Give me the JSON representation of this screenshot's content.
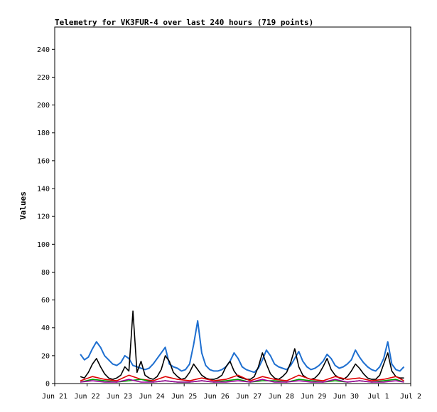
{
  "chart_data": {
    "type": "line",
    "title": "Telemetry for VK3FUR-4 over last 240 hours (719 points)",
    "xlabel": "",
    "ylabel": "Values",
    "ylim": [
      0,
      256
    ],
    "xlim": [
      "2024-06-21T00:00",
      "2024-07-02T00:00"
    ],
    "yticks": [
      0,
      20,
      40,
      60,
      80,
      100,
      120,
      140,
      160,
      180,
      200,
      220,
      240
    ],
    "xticks": [
      {
        "label": "Jun 21",
        "date": "2024-06-21T00:00"
      },
      {
        "label": "Jun 22",
        "date": "2024-06-22T00:00"
      },
      {
        "label": "Jun 23",
        "date": "2024-06-23T00:00"
      },
      {
        "label": "Jun 24",
        "date": "2024-06-24T00:00"
      },
      {
        "label": "Jun 25",
        "date": "2024-06-25T00:00"
      },
      {
        "label": "Jun 26",
        "date": "2024-06-26T00:00"
      },
      {
        "label": "Jun 27",
        "date": "2024-06-27T00:00"
      },
      {
        "label": "Jun 28",
        "date": "2024-06-28T00:00"
      },
      {
        "label": "Jun 29",
        "date": "2024-06-29T00:00"
      },
      {
        "label": "Jun 30",
        "date": "2024-06-30T00:00"
      },
      {
        "label": "Jul 1",
        "date": "2024-07-01T00:00"
      },
      {
        "label": "Jul 2",
        "date": "2024-07-02T00:00"
      }
    ],
    "grid": false,
    "legend": "none",
    "series": [
      {
        "color": "#1e6fd0",
        "x": [
          "2024-06-21T19:00",
          "2024-06-21T22:00",
          "2024-06-22T01:00",
          "2024-06-22T04:00",
          "2024-06-22T07:00",
          "2024-06-22T10:00",
          "2024-06-22T13:00",
          "2024-06-22T16:00",
          "2024-06-22T19:00",
          "2024-06-22T22:00",
          "2024-06-23T01:00",
          "2024-06-23T04:00",
          "2024-06-23T07:00",
          "2024-06-23T10:00",
          "2024-06-23T13:00",
          "2024-06-23T16:00",
          "2024-06-23T19:00",
          "2024-06-23T22:00",
          "2024-06-24T01:00",
          "2024-06-24T04:00",
          "2024-06-24T07:00",
          "2024-06-24T10:00",
          "2024-06-24T13:00",
          "2024-06-24T16:00",
          "2024-06-24T19:00",
          "2024-06-24T22:00",
          "2024-06-25T01:00",
          "2024-06-25T04:00",
          "2024-06-25T07:00",
          "2024-06-25T10:00",
          "2024-06-25T13:00",
          "2024-06-25T16:00",
          "2024-06-25T19:00",
          "2024-06-25T22:00",
          "2024-06-26T01:00",
          "2024-06-26T04:00",
          "2024-06-26T07:00",
          "2024-06-26T10:00",
          "2024-06-26T13:00",
          "2024-06-26T16:00",
          "2024-06-26T19:00",
          "2024-06-26T22:00",
          "2024-06-27T01:00",
          "2024-06-27T04:00",
          "2024-06-27T07:00",
          "2024-06-27T10:00",
          "2024-06-27T13:00",
          "2024-06-27T16:00",
          "2024-06-27T19:00",
          "2024-06-27T22:00",
          "2024-06-28T01:00",
          "2024-06-28T04:00",
          "2024-06-28T07:00",
          "2024-06-28T10:00",
          "2024-06-28T13:00",
          "2024-06-28T16:00",
          "2024-06-28T19:00",
          "2024-06-28T22:00",
          "2024-06-29T01:00",
          "2024-06-29T04:00",
          "2024-06-29T07:00",
          "2024-06-29T10:00",
          "2024-06-29T13:00",
          "2024-06-29T16:00",
          "2024-06-29T19:00",
          "2024-06-29T22:00",
          "2024-06-30T01:00",
          "2024-06-30T04:00",
          "2024-06-30T07:00",
          "2024-06-30T10:00",
          "2024-06-30T13:00",
          "2024-06-30T16:00",
          "2024-06-30T19:00",
          "2024-06-30T22:00",
          "2024-07-01T01:00",
          "2024-07-01T04:00",
          "2024-07-01T07:00",
          "2024-07-01T10:00",
          "2024-07-01T13:00",
          "2024-07-01T16:00",
          "2024-07-01T19:00"
        ],
        "y": [
          21,
          17,
          19,
          25,
          30,
          26,
          20,
          17,
          14,
          13,
          15,
          20,
          18,
          13,
          12,
          11,
          10,
          11,
          14,
          18,
          22,
          26,
          14,
          12,
          11,
          9,
          10,
          14,
          28,
          45,
          22,
          13,
          10,
          9,
          9,
          10,
          12,
          16,
          22,
          18,
          12,
          10,
          9,
          8,
          11,
          17,
          24,
          20,
          14,
          12,
          11,
          10,
          13,
          18,
          23,
          16,
          12,
          10,
          11,
          13,
          16,
          21,
          18,
          13,
          11,
          12,
          14,
          17,
          24,
          19,
          15,
          12,
          10,
          9,
          12,
          18,
          30,
          14,
          10,
          9,
          12
        ]
      },
      {
        "color": "#000000",
        "x": [
          "2024-06-21T19:00",
          "2024-06-21T22:00",
          "2024-06-22T01:00",
          "2024-06-22T04:00",
          "2024-06-22T07:00",
          "2024-06-22T10:00",
          "2024-06-22T13:00",
          "2024-06-22T16:00",
          "2024-06-22T19:00",
          "2024-06-22T22:00",
          "2024-06-23T01:00",
          "2024-06-23T04:00",
          "2024-06-23T07:00",
          "2024-06-23T10:00",
          "2024-06-23T13:00",
          "2024-06-23T16:00",
          "2024-06-23T19:00",
          "2024-06-23T22:00",
          "2024-06-24T01:00",
          "2024-06-24T04:00",
          "2024-06-24T07:00",
          "2024-06-24T10:00",
          "2024-06-24T13:00",
          "2024-06-24T16:00",
          "2024-06-24T19:00",
          "2024-06-24T22:00",
          "2024-06-25T01:00",
          "2024-06-25T04:00",
          "2024-06-25T07:00",
          "2024-06-25T10:00",
          "2024-06-25T13:00",
          "2024-06-25T16:00",
          "2024-06-25T19:00",
          "2024-06-25T22:00",
          "2024-06-26T01:00",
          "2024-06-26T04:00",
          "2024-06-26T07:00",
          "2024-06-26T10:00",
          "2024-06-26T13:00",
          "2024-06-26T16:00",
          "2024-06-26T19:00",
          "2024-06-26T22:00",
          "2024-06-27T01:00",
          "2024-06-27T04:00",
          "2024-06-27T07:00",
          "2024-06-27T10:00",
          "2024-06-27T13:00",
          "2024-06-27T16:00",
          "2024-06-27T19:00",
          "2024-06-27T22:00",
          "2024-06-28T01:00",
          "2024-06-28T04:00",
          "2024-06-28T07:00",
          "2024-06-28T10:00",
          "2024-06-28T13:00",
          "2024-06-28T16:00",
          "2024-06-28T19:00",
          "2024-06-28T22:00",
          "2024-06-29T01:00",
          "2024-06-29T04:00",
          "2024-06-29T07:00",
          "2024-06-29T10:00",
          "2024-06-29T13:00",
          "2024-06-29T16:00",
          "2024-06-29T19:00",
          "2024-06-29T22:00",
          "2024-06-30T01:00",
          "2024-06-30T04:00",
          "2024-06-30T07:00",
          "2024-06-30T10:00",
          "2024-06-30T13:00",
          "2024-06-30T16:00",
          "2024-06-30T19:00",
          "2024-06-30T22:00",
          "2024-07-01T01:00",
          "2024-07-01T04:00",
          "2024-07-01T07:00",
          "2024-07-01T10:00",
          "2024-07-01T13:00",
          "2024-07-01T16:00",
          "2024-07-01T19:00"
        ],
        "y": [
          5,
          4,
          8,
          14,
          18,
          12,
          7,
          4,
          3,
          4,
          6,
          12,
          9,
          52,
          8,
          16,
          6,
          4,
          3,
          5,
          10,
          20,
          16,
          8,
          5,
          3,
          4,
          8,
          14,
          10,
          6,
          4,
          3,
          3,
          4,
          6,
          12,
          16,
          9,
          5,
          4,
          3,
          3,
          5,
          12,
          22,
          14,
          7,
          4,
          3,
          5,
          8,
          15,
          25,
          12,
          6,
          4,
          3,
          4,
          7,
          12,
          18,
          10,
          6,
          4,
          3,
          5,
          9,
          14,
          11,
          7,
          4,
          3,
          3,
          6,
          14,
          22,
          9,
          5,
          4,
          4
        ]
      },
      {
        "color": "#e00000",
        "x": [
          "2024-06-21T19:00",
          "2024-06-22T04:00",
          "2024-06-22T13:00",
          "2024-06-22T22:00",
          "2024-06-23T07:00",
          "2024-06-23T16:00",
          "2024-06-24T01:00",
          "2024-06-24T10:00",
          "2024-06-24T19:00",
          "2024-06-25T04:00",
          "2024-06-25T13:00",
          "2024-06-25T22:00",
          "2024-06-26T07:00",
          "2024-06-26T16:00",
          "2024-06-27T01:00",
          "2024-06-27T10:00",
          "2024-06-27T19:00",
          "2024-06-28T04:00",
          "2024-06-28T13:00",
          "2024-06-28T22:00",
          "2024-06-29T07:00",
          "2024-06-29T16:00",
          "2024-06-30T01:00",
          "2024-06-30T10:00",
          "2024-06-30T19:00",
          "2024-07-01T04:00",
          "2024-07-01T13:00",
          "2024-07-01T19:00"
        ],
        "y": [
          2,
          5,
          3,
          2,
          6,
          3,
          2,
          5,
          3,
          2,
          4,
          2,
          3,
          6,
          2,
          5,
          3,
          2,
          6,
          3,
          2,
          5,
          3,
          4,
          2,
          3,
          5,
          2
        ]
      },
      {
        "color": "#00a000",
        "x": [
          "2024-06-21T19:00",
          "2024-06-22T04:00",
          "2024-06-22T13:00",
          "2024-06-22T22:00",
          "2024-06-23T07:00",
          "2024-06-23T16:00",
          "2024-06-24T01:00",
          "2024-06-24T10:00",
          "2024-06-24T19:00",
          "2024-06-25T04:00",
          "2024-06-25T13:00",
          "2024-06-25T22:00",
          "2024-06-26T07:00",
          "2024-06-26T16:00",
          "2024-06-27T01:00",
          "2024-06-27T10:00",
          "2024-06-27T19:00",
          "2024-06-28T04:00",
          "2024-06-28T13:00",
          "2024-06-28T22:00",
          "2024-06-29T07:00",
          "2024-06-29T16:00",
          "2024-06-30T01:00",
          "2024-06-30T10:00",
          "2024-06-30T19:00",
          "2024-07-01T04:00",
          "2024-07-01T13:00",
          "2024-07-01T19:00"
        ],
        "y": [
          1,
          3,
          2,
          1,
          2,
          3,
          1,
          2,
          1,
          1,
          2,
          1,
          2,
          3,
          1,
          2,
          2,
          1,
          3,
          2,
          1,
          2,
          1,
          2,
          1,
          2,
          3,
          1
        ]
      },
      {
        "color": "#a000a0",
        "x": [
          "2024-06-21T19:00",
          "2024-06-22T04:00",
          "2024-06-22T13:00",
          "2024-06-22T22:00",
          "2024-06-23T07:00",
          "2024-06-23T16:00",
          "2024-06-24T01:00",
          "2024-06-24T10:00",
          "2024-06-24T19:00",
          "2024-06-25T04:00",
          "2024-06-25T13:00",
          "2024-06-25T22:00",
          "2024-06-26T07:00",
          "2024-06-26T16:00",
          "2024-06-27T01:00",
          "2024-06-27T10:00",
          "2024-06-27T19:00",
          "2024-06-28T04:00",
          "2024-06-28T13:00",
          "2024-06-28T22:00",
          "2024-06-29T07:00",
          "2024-06-29T16:00",
          "2024-06-30T01:00",
          "2024-06-30T10:00",
          "2024-06-30T19:00",
          "2024-07-01T04:00",
          "2024-07-01T13:00",
          "2024-07-01T19:00"
        ],
        "y": [
          1,
          2,
          1,
          1,
          3,
          1,
          1,
          2,
          1,
          1,
          2,
          1,
          1,
          2,
          1,
          3,
          1,
          1,
          2,
          1,
          1,
          3,
          1,
          2,
          1,
          1,
          2,
          1
        ]
      }
    ]
  }
}
